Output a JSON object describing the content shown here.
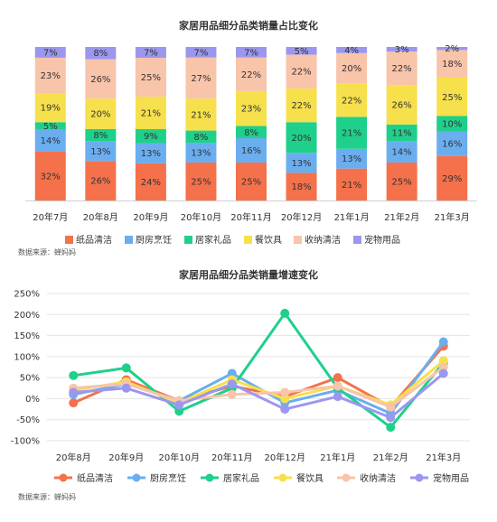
{
  "colors": {
    "纸品清洁": "#f4714b",
    "厨房烹饪": "#6aaef0",
    "居家礼品": "#1fd08b",
    "餐饮具": "#f6e04c",
    "收纳清洁": "#f8c4aa",
    "宠物用品": "#9b97ee"
  },
  "chart_data": [
    {
      "type": "bar",
      "stacked": true,
      "title": "家居用品细分品类销量占比变化",
      "categories": [
        "20年7月",
        "20年8月",
        "20年9月",
        "20年10月",
        "20年11月",
        "20年12月",
        "21年1月",
        "21年2月",
        "21年3月"
      ],
      "series": [
        {
          "name": "纸品清洁",
          "values": [
            32,
            26,
            24,
            25,
            25,
            18,
            21,
            25,
            29
          ]
        },
        {
          "name": "厨房烹饪",
          "values": [
            14,
            13,
            13,
            13,
            16,
            13,
            13,
            14,
            16
          ]
        },
        {
          "name": "居家礼品",
          "values": [
            5,
            8,
            9,
            8,
            8,
            20,
            21,
            11,
            10
          ]
        },
        {
          "name": "餐饮具",
          "values": [
            19,
            20,
            21,
            21,
            23,
            22,
            22,
            26,
            25
          ]
        },
        {
          "name": "收纳清洁",
          "values": [
            23,
            26,
            25,
            27,
            22,
            22,
            20,
            22,
            18
          ]
        },
        {
          "name": "宠物用品",
          "values": [
            7,
            8,
            7,
            7,
            7,
            5,
            4,
            3,
            2
          ]
        }
      ],
      "value_suffix": "%",
      "legend": "bottom",
      "source": "数据来源：蝉妈妈"
    },
    {
      "type": "line",
      "title": "家居用品细分品类销量增速变化",
      "categories": [
        "20年8月",
        "20年9月",
        "20年10月",
        "20年11月",
        "20年12月",
        "21年1月",
        "21年2月",
        "21年3月"
      ],
      "ylim": [
        -100,
        250
      ],
      "yticks": [
        "-100%",
        "-50%",
        "0%",
        "50%",
        "100%",
        "150%",
        "200%",
        "250%"
      ],
      "series": [
        {
          "name": "纸品清洁",
          "values": [
            -10,
            45,
            -5,
            30,
            5,
            50,
            -20,
            125
          ]
        },
        {
          "name": "厨房烹饪",
          "values": [
            10,
            35,
            -5,
            60,
            -10,
            20,
            -35,
            135
          ]
        },
        {
          "name": "居家礼品",
          "values": [
            55,
            73,
            -30,
            25,
            203,
            25,
            -68,
            85
          ]
        },
        {
          "name": "餐饮具",
          "values": [
            20,
            40,
            -10,
            45,
            0,
            30,
            -15,
            90
          ]
        },
        {
          "name": "收纳清洁",
          "values": [
            25,
            35,
            -5,
            10,
            15,
            30,
            -20,
            75
          ]
        },
        {
          "name": "宠物用品",
          "values": [
            15,
            25,
            -15,
            35,
            -25,
            5,
            -45,
            60
          ]
        }
      ],
      "legend": "bottom",
      "source": "数据来源：蝉妈妈"
    }
  ]
}
